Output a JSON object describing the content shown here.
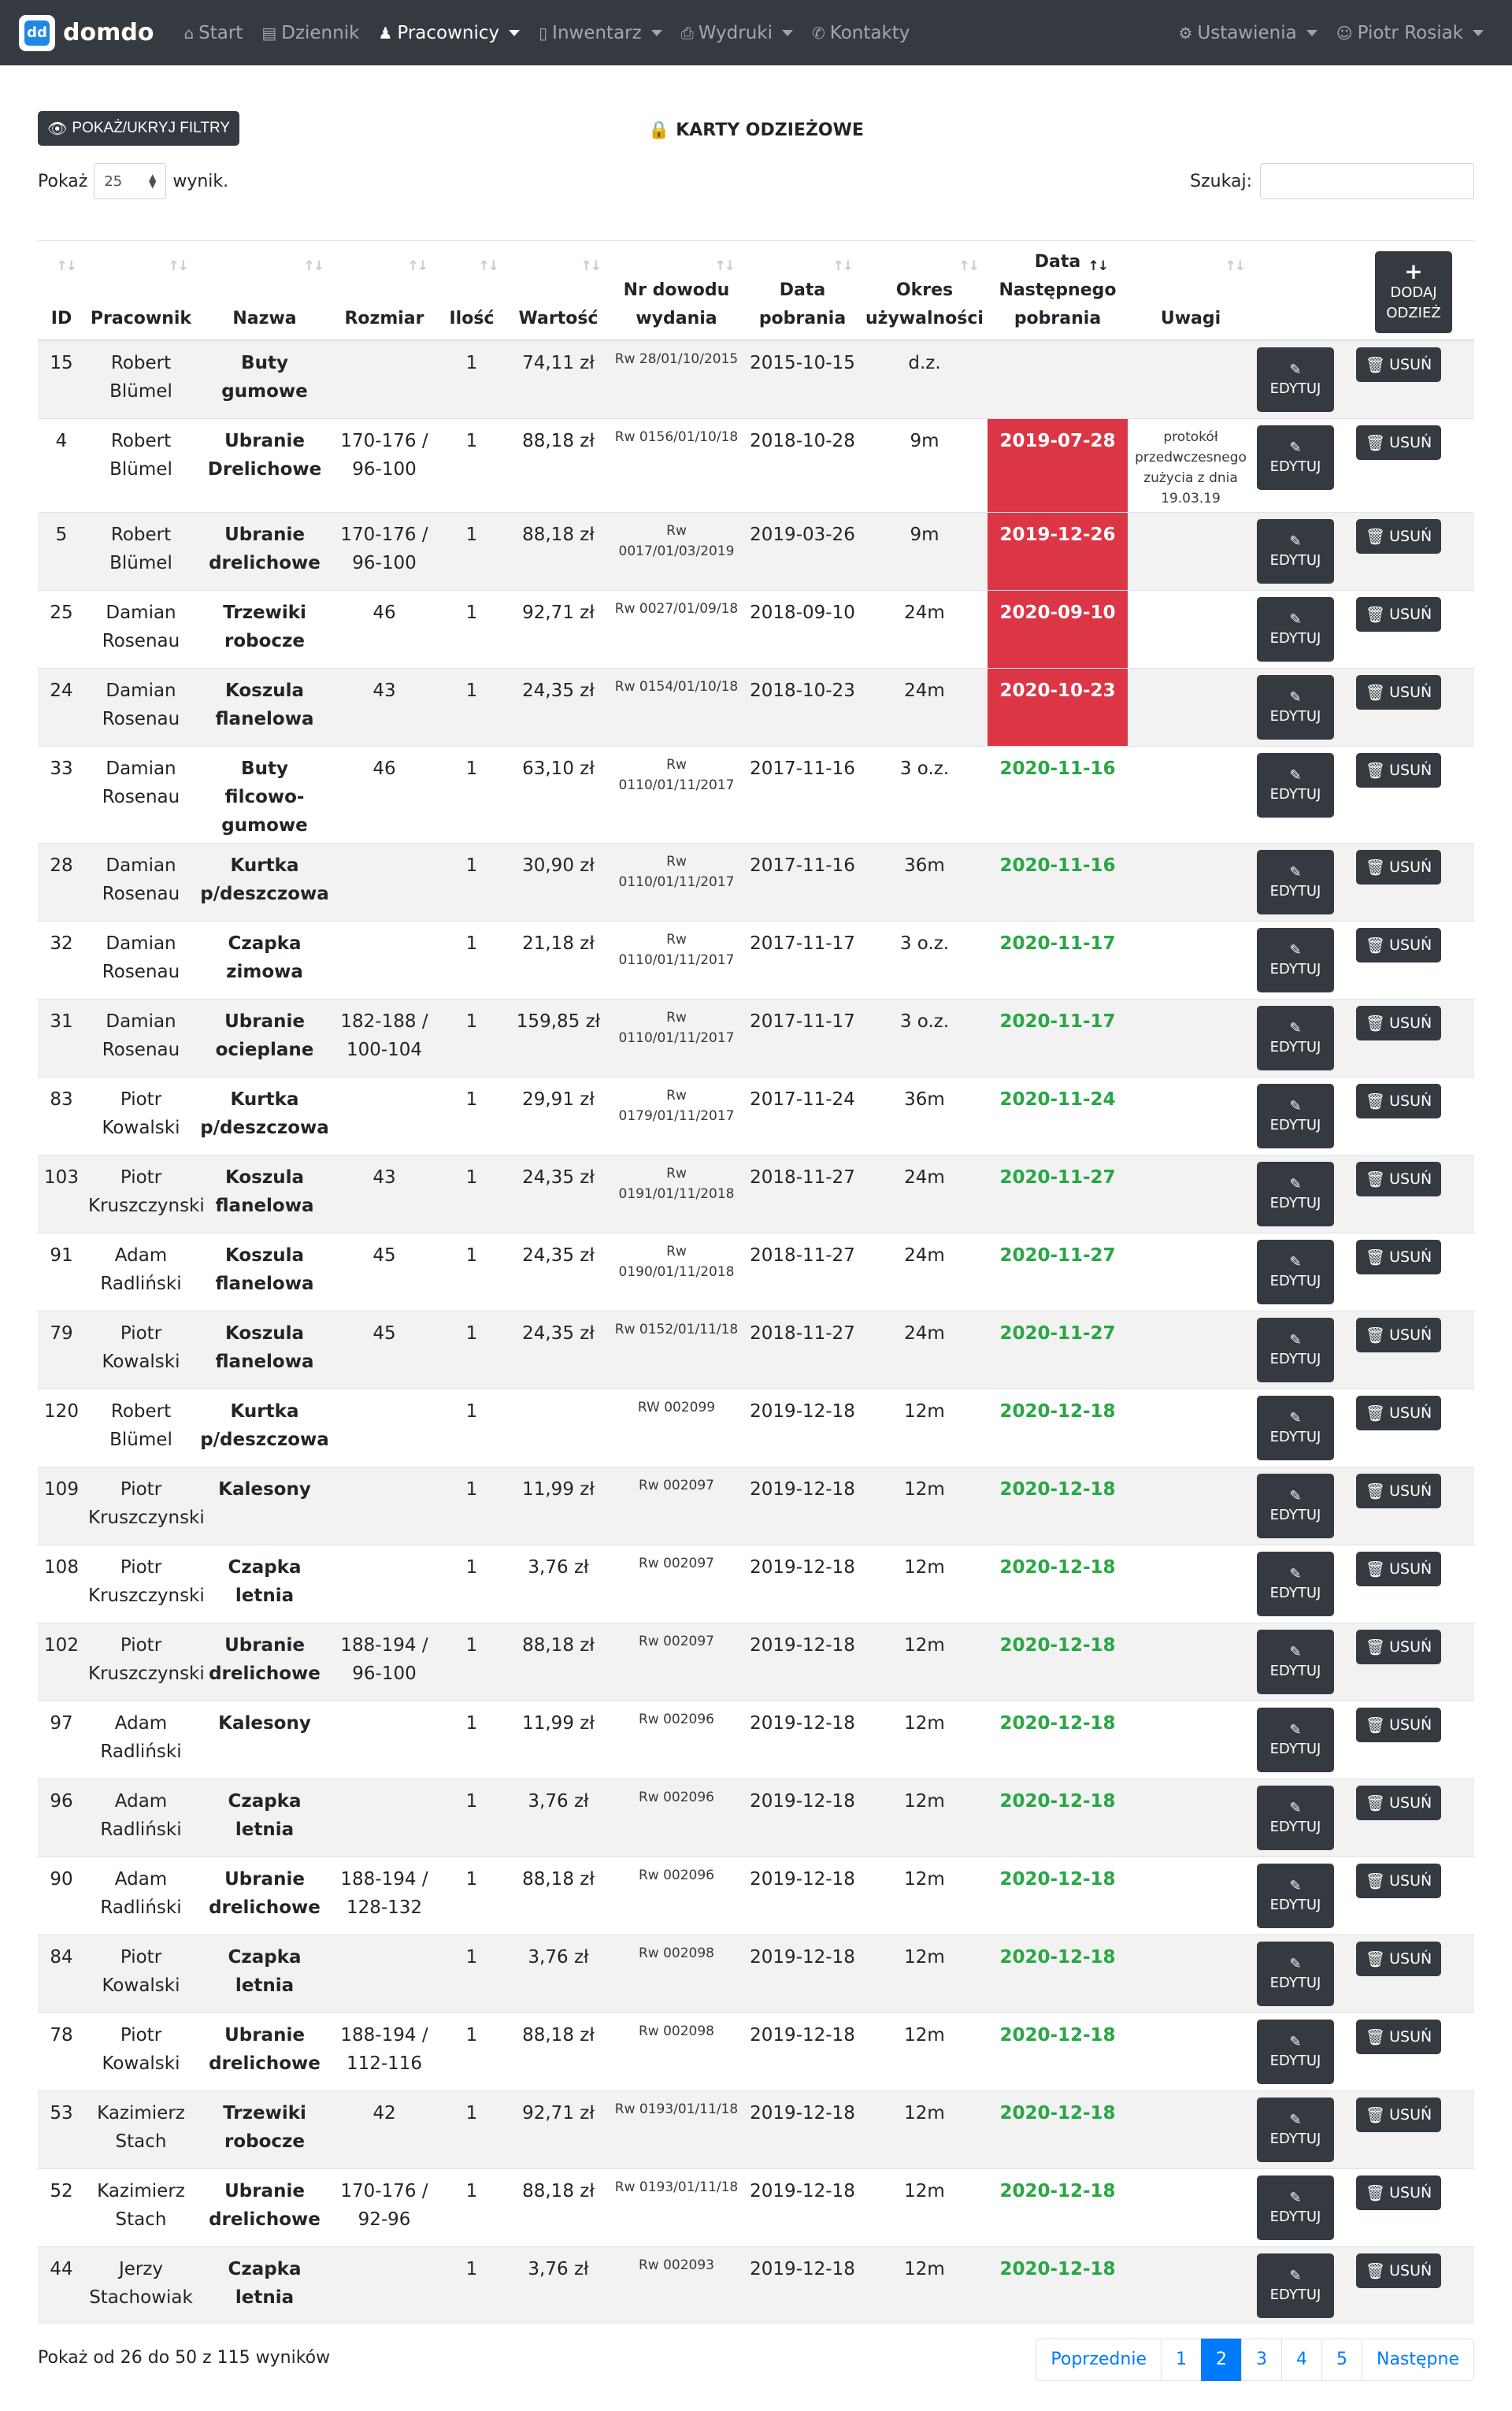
{
  "nav": {
    "brand": "domdo",
    "brand_logo": "dd",
    "items": [
      {
        "label": "Start",
        "icon": "home-icon",
        "dropdown": false,
        "active": false
      },
      {
        "label": "Dziennik",
        "icon": "book-icon",
        "dropdown": false,
        "active": false
      },
      {
        "label": "Pracownicy",
        "icon": "person-icon",
        "dropdown": true,
        "active": true
      },
      {
        "label": "Inwentarz",
        "icon": "file-icon",
        "dropdown": true,
        "active": false
      },
      {
        "label": "Wydruki",
        "icon": "print-icon",
        "dropdown": true,
        "active": false
      },
      {
        "label": "Kontakty",
        "icon": "phone-icon",
        "dropdown": false,
        "active": false
      }
    ],
    "right": [
      {
        "label": "Ustawienia",
        "icon": "gear-icon",
        "dropdown": true
      },
      {
        "label": "Piotr Rosiak",
        "icon": "user-icon",
        "dropdown": true
      }
    ]
  },
  "toolbar": {
    "filter_button": "POKAŻ/UKRYJ FILTRY",
    "title": "KARTY ODZIEŻOWE"
  },
  "length": {
    "label_before": "Pokaż",
    "value": "25",
    "label_after": "wynik."
  },
  "search": {
    "label": "Szukaj:",
    "placeholder": "",
    "value": ""
  },
  "table": {
    "headers": [
      "ID",
      "Pracownik",
      "Nazwa",
      "Rozmiar",
      "Ilość",
      "Wartość",
      "Nr dowodu wydania",
      "Data pobrania",
      "Okres używalności",
      "Data Następnego pobrania",
      "Uwagi"
    ],
    "add_button": {
      "line1": "DODAJ",
      "line2": "ODZIEŻ"
    },
    "edit_label": "EDYTUJ",
    "delete_label": "USUŃ",
    "rows": [
      {
        "id": "15",
        "worker": "Robert Blümel",
        "name": "Buty gumowe",
        "size": "",
        "qty": "1",
        "value": "74,11 zł",
        "doc": "Rw 28/01/10/2015",
        "date": "2015-10-15",
        "period": "d.z.",
        "next": "",
        "status": "none",
        "note": ""
      },
      {
        "id": "4",
        "worker": "Robert Blümel",
        "name": "Ubranie Drelichowe",
        "size": "170-176 / 96-100",
        "qty": "1",
        "value": "88,18 zł",
        "doc": "Rw 0156/01/10/18",
        "date": "2018-10-28",
        "period": "9m",
        "next": "2019-07-28",
        "status": "late",
        "note": "protokół przedwczesnego zużycia z dnia 19.03.19"
      },
      {
        "id": "5",
        "worker": "Robert Blümel",
        "name": "Ubranie drelichowe",
        "size": "170-176 / 96-100",
        "qty": "1",
        "value": "88,18 zł",
        "doc": "Rw 0017/01/03/2019",
        "date": "2019-03-26",
        "period": "9m",
        "next": "2019-12-26",
        "status": "late",
        "note": ""
      },
      {
        "id": "25",
        "worker": "Damian Rosenau",
        "name": "Trzewiki robocze",
        "size": "46",
        "qty": "1",
        "value": "92,71 zł",
        "doc": "Rw 0027/01/09/18",
        "date": "2018-09-10",
        "period": "24m",
        "next": "2020-09-10",
        "status": "late",
        "note": ""
      },
      {
        "id": "24",
        "worker": "Damian Rosenau",
        "name": "Koszula flanelowa",
        "size": "43",
        "qty": "1",
        "value": "24,35 zł",
        "doc": "Rw 0154/01/10/18",
        "date": "2018-10-23",
        "period": "24m",
        "next": "2020-10-23",
        "status": "late",
        "note": ""
      },
      {
        "id": "33",
        "worker": "Damian Rosenau",
        "name": "Buty filcowo-gumowe",
        "size": "46",
        "qty": "1",
        "value": "63,10 zł",
        "doc": "Rw 0110/01/11/2017",
        "date": "2017-11-16",
        "period": "3 o.z.",
        "next": "2020-11-16",
        "status": "ok",
        "note": ""
      },
      {
        "id": "28",
        "worker": "Damian Rosenau",
        "name": "Kurtka p/deszczowa",
        "size": "",
        "qty": "1",
        "value": "30,90 zł",
        "doc": "Rw 0110/01/11/2017",
        "date": "2017-11-16",
        "period": "36m",
        "next": "2020-11-16",
        "status": "ok",
        "note": ""
      },
      {
        "id": "32",
        "worker": "Damian Rosenau",
        "name": "Czapka zimowa",
        "size": "",
        "qty": "1",
        "value": "21,18 zł",
        "doc": "Rw 0110/01/11/2017",
        "date": "2017-11-17",
        "period": "3 o.z.",
        "next": "2020-11-17",
        "status": "ok",
        "note": ""
      },
      {
        "id": "31",
        "worker": "Damian Rosenau",
        "name": "Ubranie ocieplane",
        "size": "182-188 / 100-104",
        "qty": "1",
        "value": "159,85 zł",
        "doc": "Rw 0110/01/11/2017",
        "date": "2017-11-17",
        "period": "3 o.z.",
        "next": "2020-11-17",
        "status": "ok",
        "note": ""
      },
      {
        "id": "83",
        "worker": "Piotr Kowalski",
        "name": "Kurtka p/deszczowa",
        "size": "",
        "qty": "1",
        "value": "29,91 zł",
        "doc": "Rw 0179/01/11/2017",
        "date": "2017-11-24",
        "period": "36m",
        "next": "2020-11-24",
        "status": "ok",
        "note": ""
      },
      {
        "id": "103",
        "worker": "Piotr Kruszczynski",
        "name": "Koszula flanelowa",
        "size": "43",
        "qty": "1",
        "value": "24,35 zł",
        "doc": "Rw 0191/01/11/2018",
        "date": "2018-11-27",
        "period": "24m",
        "next": "2020-11-27",
        "status": "ok",
        "note": ""
      },
      {
        "id": "91",
        "worker": "Adam Radliński",
        "name": "Koszula flanelowa",
        "size": "45",
        "qty": "1",
        "value": "24,35 zł",
        "doc": "Rw 0190/01/11/2018",
        "date": "2018-11-27",
        "period": "24m",
        "next": "2020-11-27",
        "status": "ok",
        "note": ""
      },
      {
        "id": "79",
        "worker": "Piotr Kowalski",
        "name": "Koszula flanelowa",
        "size": "45",
        "qty": "1",
        "value": "24,35 zł",
        "doc": "Rw 0152/01/11/18",
        "date": "2018-11-27",
        "period": "24m",
        "next": "2020-11-27",
        "status": "ok",
        "note": ""
      },
      {
        "id": "120",
        "worker": "Robert Blümel",
        "name": "Kurtka p/deszczowa",
        "size": "",
        "qty": "1",
        "value": "",
        "doc": "RW 002099",
        "date": "2019-12-18",
        "period": "12m",
        "next": "2020-12-18",
        "status": "ok",
        "note": ""
      },
      {
        "id": "109",
        "worker": "Piotr Kruszczynski",
        "name": "Kalesony",
        "size": "",
        "qty": "1",
        "value": "11,99 zł",
        "doc": "Rw 002097",
        "date": "2019-12-18",
        "period": "12m",
        "next": "2020-12-18",
        "status": "ok",
        "note": ""
      },
      {
        "id": "108",
        "worker": "Piotr Kruszczynski",
        "name": "Czapka letnia",
        "size": "",
        "qty": "1",
        "value": "3,76 zł",
        "doc": "Rw 002097",
        "date": "2019-12-18",
        "period": "12m",
        "next": "2020-12-18",
        "status": "ok",
        "note": ""
      },
      {
        "id": "102",
        "worker": "Piotr Kruszczynski",
        "name": "Ubranie drelichowe",
        "size": "188-194 / 96-100",
        "qty": "1",
        "value": "88,18 zł",
        "doc": "Rw 002097",
        "date": "2019-12-18",
        "period": "12m",
        "next": "2020-12-18",
        "status": "ok",
        "note": ""
      },
      {
        "id": "97",
        "worker": "Adam Radliński",
        "name": "Kalesony",
        "size": "",
        "qty": "1",
        "value": "11,99 zł",
        "doc": "Rw 002096",
        "date": "2019-12-18",
        "period": "12m",
        "next": "2020-12-18",
        "status": "ok",
        "note": ""
      },
      {
        "id": "96",
        "worker": "Adam Radliński",
        "name": "Czapka letnia",
        "size": "",
        "qty": "1",
        "value": "3,76 zł",
        "doc": "Rw 002096",
        "date": "2019-12-18",
        "period": "12m",
        "next": "2020-12-18",
        "status": "ok",
        "note": ""
      },
      {
        "id": "90",
        "worker": "Adam Radliński",
        "name": "Ubranie drelichowe",
        "size": "188-194 / 128-132",
        "qty": "1",
        "value": "88,18 zł",
        "doc": "Rw 002096",
        "date": "2019-12-18",
        "period": "12m",
        "next": "2020-12-18",
        "status": "ok",
        "note": ""
      },
      {
        "id": "84",
        "worker": "Piotr Kowalski",
        "name": "Czapka letnia",
        "size": "",
        "qty": "1",
        "value": "3,76 zł",
        "doc": "Rw 002098",
        "date": "2019-12-18",
        "period": "12m",
        "next": "2020-12-18",
        "status": "ok",
        "note": ""
      },
      {
        "id": "78",
        "worker": "Piotr Kowalski",
        "name": "Ubranie drelichowe",
        "size": "188-194 / 112-116",
        "qty": "1",
        "value": "88,18 zł",
        "doc": "Rw 002098",
        "date": "2019-12-18",
        "period": "12m",
        "next": "2020-12-18",
        "status": "ok",
        "note": ""
      },
      {
        "id": "53",
        "worker": "Kazimierz Stach",
        "name": "Trzewiki robocze",
        "size": "42",
        "qty": "1",
        "value": "92,71 zł",
        "doc": "Rw 0193/01/11/18",
        "date": "2019-12-18",
        "period": "12m",
        "next": "2020-12-18",
        "status": "ok",
        "note": ""
      },
      {
        "id": "52",
        "worker": "Kazimierz Stach",
        "name": "Ubranie drelichowe",
        "size": "170-176 / 92-96",
        "qty": "1",
        "value": "88,18 zł",
        "doc": "Rw 0193/01/11/18",
        "date": "2019-12-18",
        "period": "12m",
        "next": "2020-12-18",
        "status": "ok",
        "note": ""
      },
      {
        "id": "44",
        "worker": "Jerzy Stachowiak",
        "name": "Czapka letnia",
        "size": "",
        "qty": "1",
        "value": "3,76 zł",
        "doc": "Rw 002093",
        "date": "2019-12-18",
        "period": "12m",
        "next": "2020-12-18",
        "status": "ok",
        "note": ""
      }
    ]
  },
  "footer": {
    "info": "Pokaż od 26 do 50 z 115 wyników",
    "pagination": {
      "prev": "Poprzednie",
      "pages": [
        "1",
        "2",
        "3",
        "4",
        "5"
      ],
      "current": "2",
      "next": "Następne"
    }
  },
  "colors": {
    "navbar": "#343a40",
    "late": "#dc3545",
    "ok": "#28a745",
    "link": "#007bff"
  }
}
